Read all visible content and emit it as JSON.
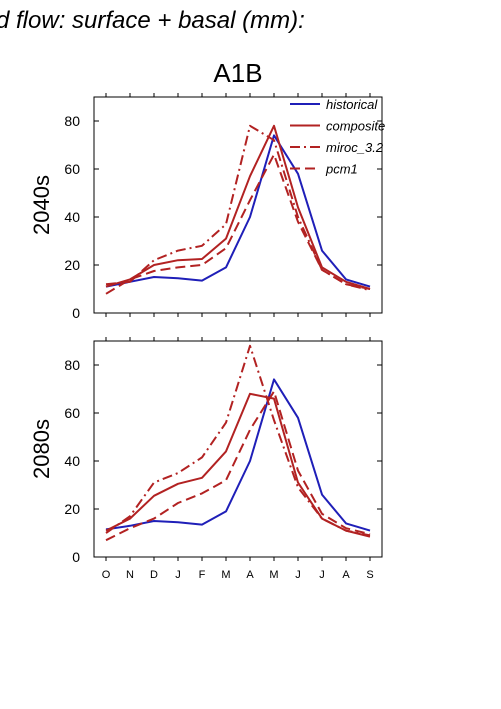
{
  "figure": {
    "title": "d flow: surface + basal (mm):",
    "panel_title": "A1B"
  },
  "colors": {
    "historical": "#1f1fb8",
    "future": "#b22222",
    "axis": "#000000"
  },
  "chart_data": [
    {
      "type": "line",
      "ylabel": "2040s",
      "xlabel": "",
      "categories": [
        "O",
        "N",
        "D",
        "J",
        "F",
        "M",
        "A",
        "M",
        "J",
        "J",
        "A",
        "S"
      ],
      "ylim": [
        0,
        90
      ],
      "yticks": [
        0,
        20,
        40,
        60,
        80
      ],
      "legend_position": "top-right",
      "series": [
        {
          "name": "historical",
          "style": "solid",
          "color": "#1f1fb8",
          "values": [
            11,
            13,
            15,
            14.5,
            13.5,
            19,
            40,
            74,
            58,
            26,
            14,
            11
          ]
        },
        {
          "name": "composite",
          "style": "solid",
          "color": "#b22222",
          "values": [
            11,
            14,
            20,
            22,
            22.5,
            31,
            57,
            78,
            44,
            19,
            13,
            10
          ]
        },
        {
          "name": "miroc_3.2",
          "style": "dashdot",
          "color": "#b22222",
          "values": [
            12,
            13,
            22,
            26,
            28,
            37,
            78,
            72,
            40,
            18,
            12,
            9.5
          ]
        },
        {
          "name": "pcm1",
          "style": "dashed",
          "color": "#b22222",
          "values": [
            8,
            14,
            17.5,
            19,
            20,
            27,
            47,
            66,
            38,
            18,
            12,
            10
          ]
        }
      ]
    },
    {
      "type": "line",
      "ylabel": "2080s",
      "xlabel": "",
      "categories": [
        "O",
        "N",
        "D",
        "J",
        "F",
        "M",
        "A",
        "M",
        "J",
        "J",
        "A",
        "S"
      ],
      "ylim": [
        0,
        90
      ],
      "yticks": [
        0,
        20,
        40,
        60,
        80
      ],
      "series": [
        {
          "name": "historical",
          "style": "solid",
          "color": "#1f1fb8",
          "values": [
            11.5,
            13,
            15,
            14.5,
            13.5,
            19,
            40,
            74,
            58,
            26,
            14,
            11
          ]
        },
        {
          "name": "composite",
          "style": "solid",
          "color": "#b22222",
          "values": [
            11,
            16,
            25.5,
            30.5,
            33,
            44,
            68,
            66,
            31,
            16,
            11,
            8.5
          ]
        },
        {
          "name": "miroc_3.2",
          "style": "dashdot",
          "color": "#b22222",
          "values": [
            10,
            17,
            31,
            35,
            41.5,
            56,
            88,
            57,
            29,
            16,
            11,
            9
          ]
        },
        {
          "name": "pcm1",
          "style": "dashed",
          "color": "#b22222",
          "values": [
            7,
            12,
            16,
            22.5,
            26.5,
            32,
            53,
            69,
            36,
            18,
            12,
            9.5
          ]
        }
      ]
    }
  ]
}
